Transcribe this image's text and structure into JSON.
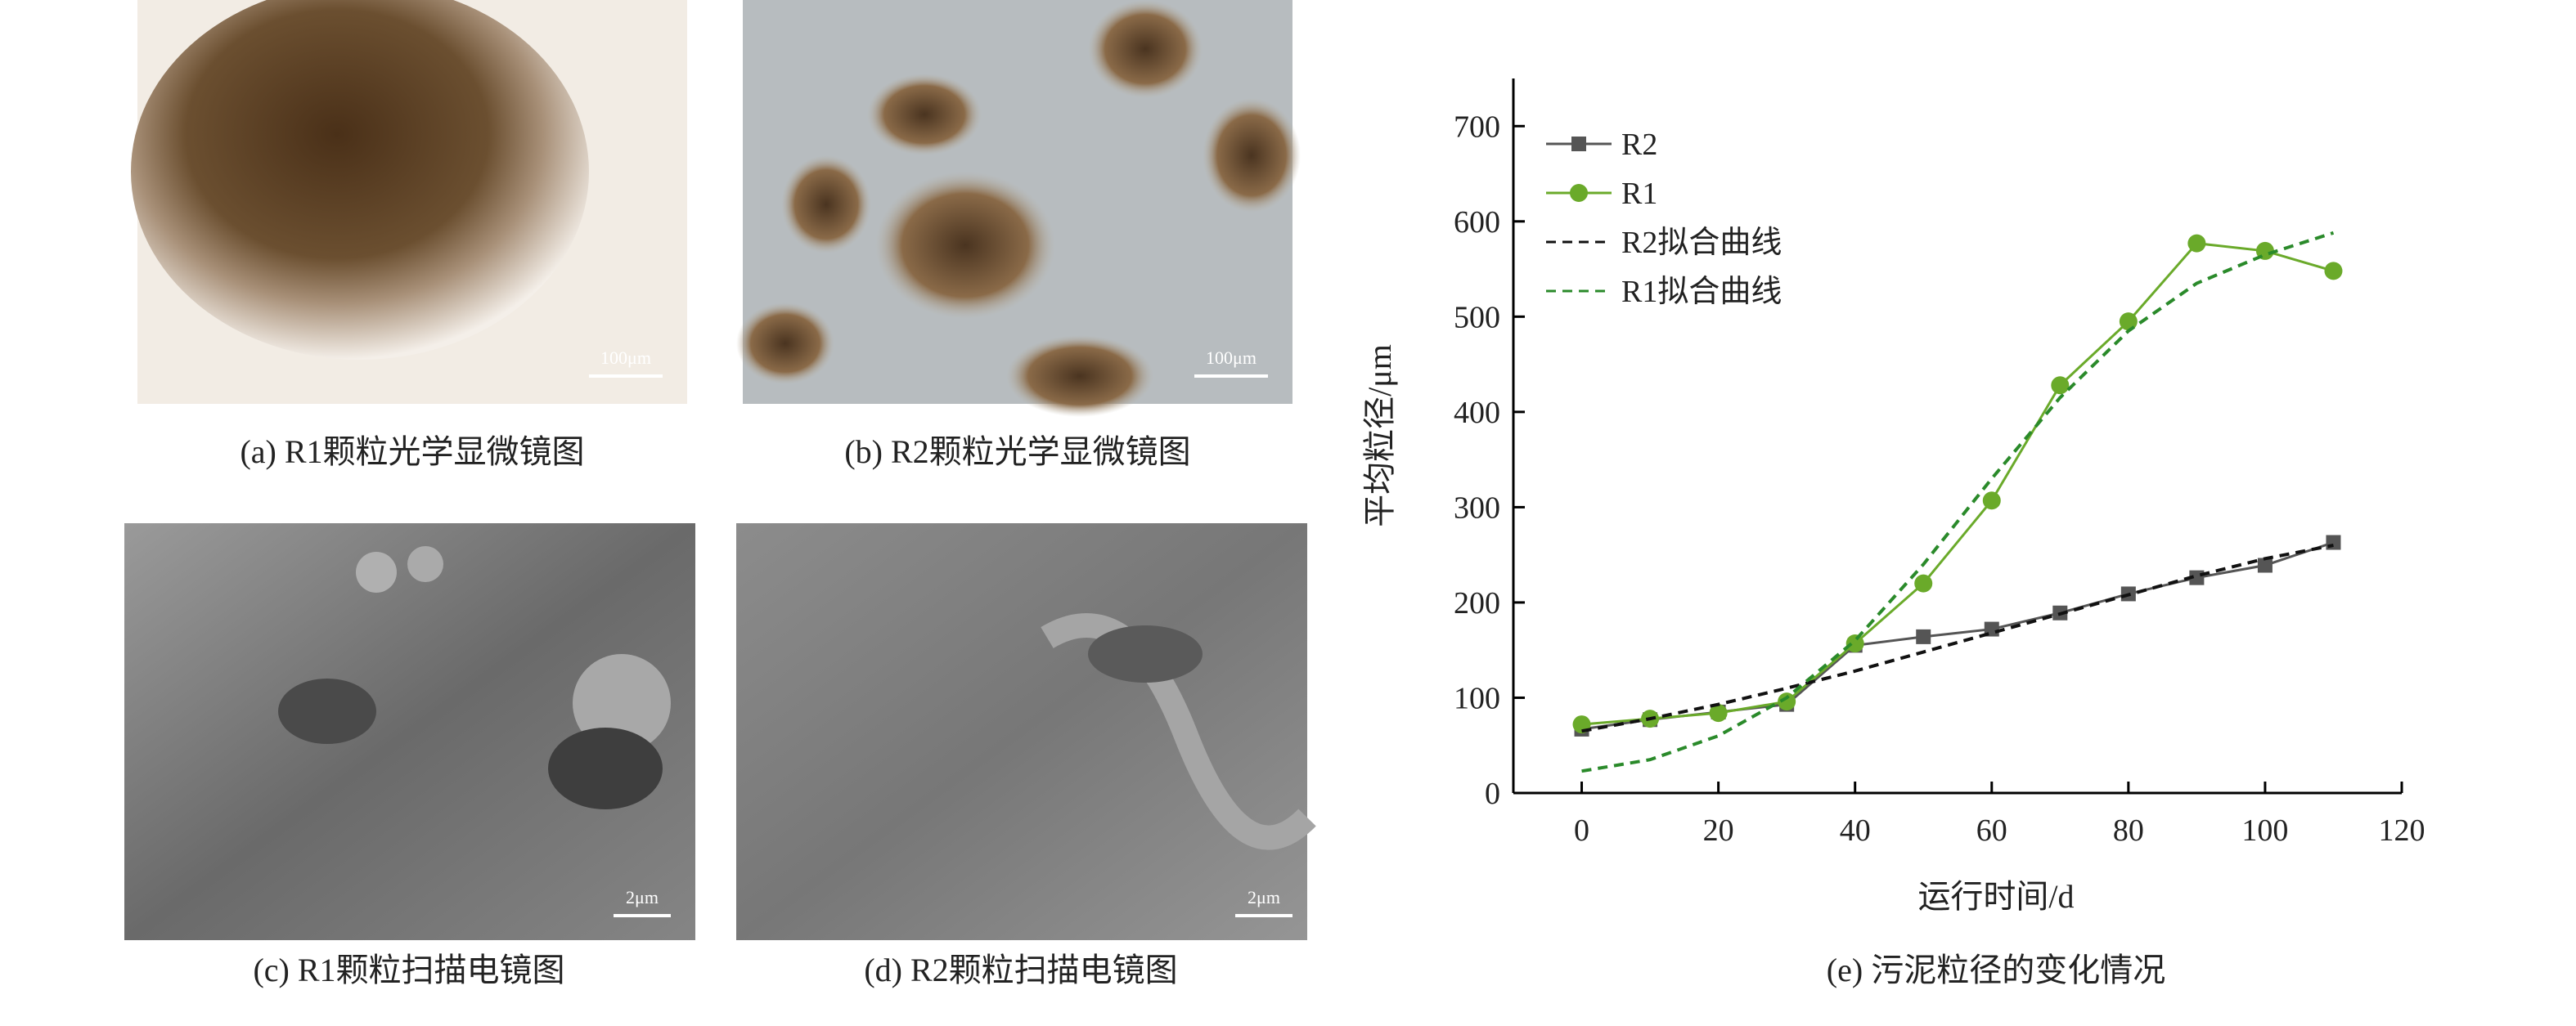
{
  "panels": [
    {
      "caption": "(a) R1颗粒光学显微镜图",
      "scale_bar": "100μm"
    },
    {
      "caption": "(b) R2颗粒光学显微镜图",
      "scale_bar": "100μm"
    },
    {
      "caption": "(c) R1颗粒扫描电镜图",
      "scale_bar": "2μm"
    },
    {
      "caption": "(d) R2颗粒扫描电镜图",
      "scale_bar": "2μm"
    }
  ],
  "chart_data": {
    "type": "line",
    "caption": "(e) 污泥粒径的变化情况",
    "x_label": "运行时间/d",
    "y_label": "平均粒径/μm",
    "x": [
      0,
      10,
      20,
      30,
      40,
      50,
      60,
      70,
      80,
      90,
      100,
      110
    ],
    "series": [
      {
        "name": "R2",
        "color": "#555555",
        "marker": "square",
        "dashed": false,
        "values": [
          67,
          77,
          85,
          93,
          155,
          164,
          172,
          189,
          209,
          226,
          239,
          263
        ]
      },
      {
        "name": "R1",
        "color": "#6aaa2a",
        "marker": "circle",
        "dashed": false,
        "values": [
          72,
          78,
          84,
          96,
          157,
          220,
          307,
          428,
          495,
          577,
          569,
          548
        ]
      },
      {
        "name": "R2拟合曲线",
        "color": "#111111",
        "marker": "none",
        "dashed": true,
        "values": [
          65,
          78,
          93,
          110,
          128,
          148,
          168,
          188,
          208,
          228,
          246,
          260
        ]
      },
      {
        "name": "R1拟合曲线",
        "color": "#2a8a2a",
        "marker": "none",
        "dashed": true,
        "values": [
          23,
          35,
          60,
          100,
          160,
          240,
          330,
          415,
          485,
          535,
          565,
          588
        ]
      }
    ],
    "xlim": [
      -10,
      120
    ],
    "xticks": [
      0,
      20,
      40,
      60,
      80,
      100,
      120
    ],
    "ylim": [
      0,
      750
    ],
    "yticks": [
      0,
      100,
      200,
      300,
      400,
      500,
      600,
      700
    ],
    "legend": "upper left",
    "grid": false
  }
}
